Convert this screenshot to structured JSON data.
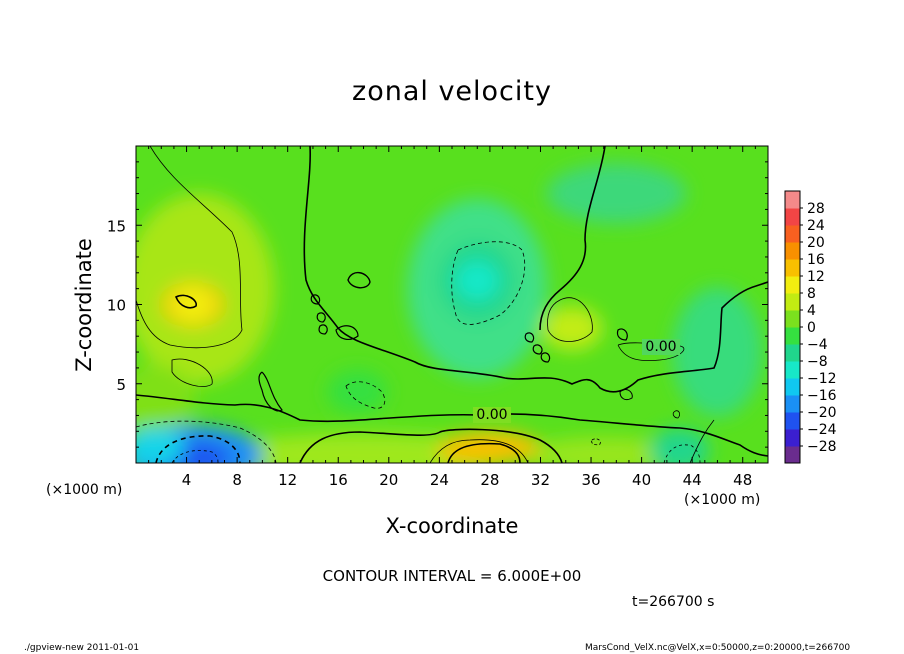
{
  "chart_data": {
    "type": "heatmap",
    "title": "zonal velocity",
    "xlabel": "X-coordinate",
    "ylabel": "Z-coordinate",
    "x_unit_label": "(×1000 m)",
    "xlim": [
      0,
      50
    ],
    "ylim": [
      0,
      20
    ],
    "x_ticks": [
      4,
      8,
      12,
      16,
      20,
      24,
      28,
      32,
      36,
      40,
      44,
      48
    ],
    "y_ticks": [
      5,
      10,
      15
    ],
    "colorbar_ticks": [
      28,
      24,
      20,
      16,
      12,
      8,
      4,
      0,
      -4,
      -8,
      -12,
      -16,
      -20,
      -24,
      -28
    ],
    "colorbar_colors": [
      "#6a2c8e",
      "#3b1fd0",
      "#1f52f0",
      "#1a90f5",
      "#10c8f0",
      "#17e8c8",
      "#20d68c",
      "#35e040",
      "#7be01e",
      "#c2ec12",
      "#f2ee10",
      "#f8c000",
      "#f89000",
      "#f86020",
      "#f24545",
      "#f48a8a"
    ],
    "contour_labels": [
      "0.00",
      "0.00"
    ],
    "features": [
      {
        "x": 4.5,
        "z": 10,
        "value": 12,
        "label": "positive max"
      },
      {
        "x": 4.5,
        "z": 0.5,
        "value": -20,
        "label": "negative min"
      },
      {
        "x": 28,
        "z": 1,
        "value": 14,
        "label": "positive max"
      },
      {
        "x": 27,
        "z": 11.5,
        "value": -8,
        "label": "negative min"
      },
      {
        "x": 17.5,
        "z": 4.5,
        "value": -4,
        "label": "negative min"
      },
      {
        "x": 34.5,
        "z": 8.5,
        "value": 6,
        "label": "positive max"
      },
      {
        "x": 43,
        "z": 0.8,
        "value": -8,
        "label": "negative min"
      }
    ]
  },
  "annotations": {
    "contour_interval": "CONTOUR INTERVAL = 6.000E+00",
    "time": "t=266700 s",
    "footer_left": "./gpview-new   2011-01-01",
    "footer_right": "MarsCond_VelX.nc@VelX,x=0:50000,z=0:20000,t=266700"
  }
}
